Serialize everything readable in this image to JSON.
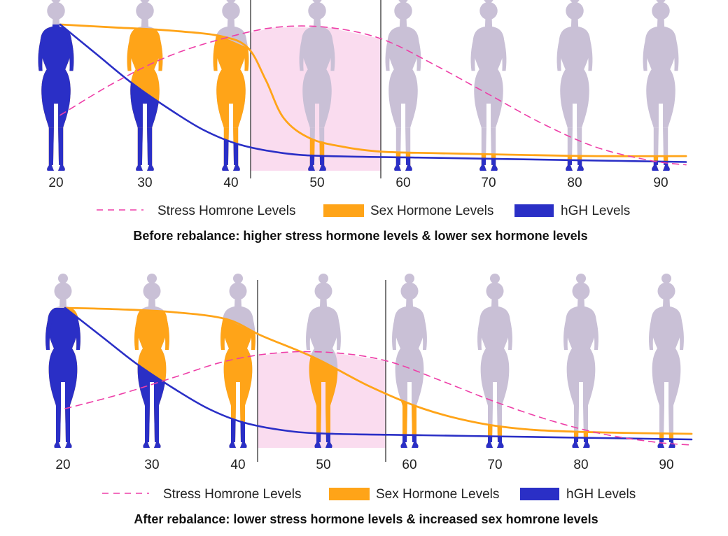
{
  "colors": {
    "stress": "#ee3fa8",
    "sex": "#ffa418",
    "hgh": "#2a2fc6",
    "body_gray": "#c9c0d6",
    "stress_shade": "#fadcef",
    "divider": "#333333"
  },
  "chart_data": [
    {
      "type": "line",
      "caption": "Before rebalance: higher stress hormone levels & lower sex hormone levels",
      "ages": [
        "20",
        "30",
        "40",
        "50",
        "60",
        "70",
        "80",
        "90"
      ],
      "legend": [
        "Stress Homrone Levels",
        "Sex Hormone Levels",
        "hGH Levels"
      ],
      "shaded_age_range": [
        51,
        60
      ],
      "y_range": [
        0,
        100
      ],
      "series": [
        {
          "key": "stress",
          "style": "dashed",
          "x": [
            20,
            26,
            32,
            38,
            44,
            50,
            56,
            62,
            68,
            74,
            80,
            86,
            90
          ],
          "y": [
            38,
            60,
            78,
            90,
            98,
            98,
            90,
            72,
            52,
            32,
            16,
            7,
            4
          ]
        },
        {
          "key": "sex",
          "style": "solid",
          "x": [
            20,
            26,
            32,
            38,
            41,
            43,
            45,
            48,
            52,
            56,
            62,
            70,
            80,
            90
          ],
          "y": [
            100,
            98,
            96,
            92,
            84,
            62,
            36,
            22,
            16,
            13,
            12,
            11,
            10,
            10
          ]
        },
        {
          "key": "hgh",
          "style": "solid",
          "x": [
            20,
            24,
            28,
            32,
            36,
            40,
            45,
            50,
            60,
            70,
            80,
            90
          ],
          "y": [
            100,
            80,
            60,
            43,
            28,
            18,
            12,
            10,
            9,
            8,
            7,
            6
          ]
        }
      ]
    },
    {
      "type": "line",
      "caption": "After rebalance: lower stress hormone levels & increased sex homrone levels",
      "ages": [
        "20",
        "30",
        "40",
        "50",
        "60",
        "70",
        "80",
        "90"
      ],
      "legend": [
        "Stress Homrone Levels",
        "Sex Hormone Levels",
        "hGH Levels"
      ],
      "shaded_age_range": [
        41,
        57
      ],
      "y_range": [
        0,
        100
      ],
      "series": [
        {
          "key": "stress",
          "style": "dashed",
          "x": [
            20,
            26,
            32,
            38,
            44,
            50,
            56,
            62,
            68,
            74,
            80,
            86,
            90
          ],
          "y": [
            28,
            38,
            50,
            62,
            68,
            68,
            62,
            48,
            33,
            20,
            10,
            4,
            2
          ]
        },
        {
          "key": "sex",
          "style": "solid",
          "x": [
            20,
            26,
            32,
            38,
            42,
            48,
            54,
            60,
            66,
            72,
            80,
            90
          ],
          "y": [
            100,
            99,
            97,
            92,
            80,
            64,
            44,
            28,
            18,
            13,
            11,
            10
          ]
        },
        {
          "key": "hgh",
          "style": "solid",
          "x": [
            20,
            24,
            28,
            32,
            36,
            40,
            45,
            50,
            60,
            70,
            80,
            90
          ],
          "y": [
            100,
            80,
            60,
            43,
            28,
            18,
            12,
            10,
            9,
            8,
            7,
            6
          ]
        }
      ]
    }
  ]
}
